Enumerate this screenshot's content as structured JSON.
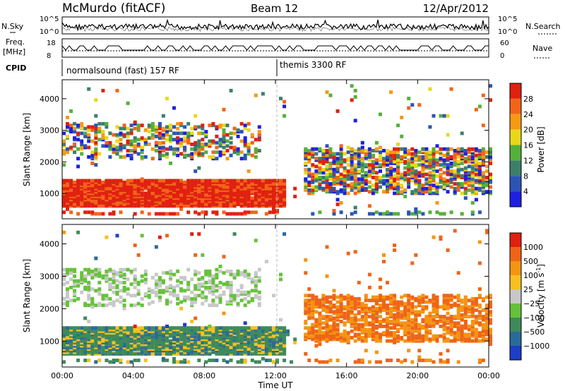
{
  "header": {
    "station": "McMurdo (fitACF)",
    "beam": "Beam 12",
    "date": "12/Apr/2012"
  },
  "params": {
    "nsky_label": "N.Sky",
    "nsearch_label": "N.Search",
    "freq_label": "Freq.",
    "freq_unit": "[MHz]",
    "nave_label": "Nave",
    "cpid_label": "CPID",
    "nsky_ticks": [
      "10^5",
      "10^0"
    ],
    "nsearch_ticks": [
      "10^5",
      "10^0"
    ],
    "freq_ticks": [
      "18",
      "8"
    ],
    "nave_ticks": [
      "60",
      "0"
    ],
    "cpid_programs": [
      {
        "label": "normalsound (fast) 157 RF",
        "start_hour": 0,
        "end_hour": 12
      },
      {
        "label": "themis 3300 RF",
        "start_hour": 12,
        "end_hour": 24
      }
    ]
  },
  "chart_data": [
    {
      "type": "heatmap",
      "name": "power",
      "ylabel": "Slant Range [km]",
      "yticks": [
        "1000",
        "2000",
        "3000",
        "4000"
      ],
      "ylim": [
        200,
        4600
      ],
      "xlim": [
        0,
        24
      ],
      "colorbar_label": "Power [dB]",
      "colorbar_ticks": [
        "4",
        "8",
        "12",
        "16",
        "20",
        "24",
        "28"
      ],
      "colorbar_colors": [
        "#1f1fe0",
        "#2b55b5",
        "#3c7f6a",
        "#55b03a",
        "#e9d81a",
        "#f59a14",
        "#f26418",
        "#e02010"
      ]
    },
    {
      "type": "heatmap",
      "name": "velocity",
      "ylabel": "Slant Range [km]",
      "yticks": [
        "1000",
        "2000",
        "3000",
        "4000"
      ],
      "ylim": [
        200,
        4600
      ],
      "xlim": [
        0,
        24
      ],
      "xlabel": "Time UT",
      "xticks": [
        "00:00",
        "04:00",
        "08:00",
        "12:00",
        "16:00",
        "20:00",
        "00:00"
      ],
      "colorbar_label": "Velocity [m s",
      "colorbar_label_exp": "-1",
      "colorbar_label_close": "]",
      "colorbar_ticks": [
        "1000",
        "500",
        "100",
        "25",
        "−25",
        "−100",
        "−500",
        "−1000"
      ],
      "colorbar_colors": [
        "#1c3ec8",
        "#2a6a9a",
        "#3f8a5a",
        "#66c23a",
        "#c8c8c8",
        "#f7c020",
        "#f39512",
        "#ef6418",
        "#e02010"
      ]
    }
  ]
}
